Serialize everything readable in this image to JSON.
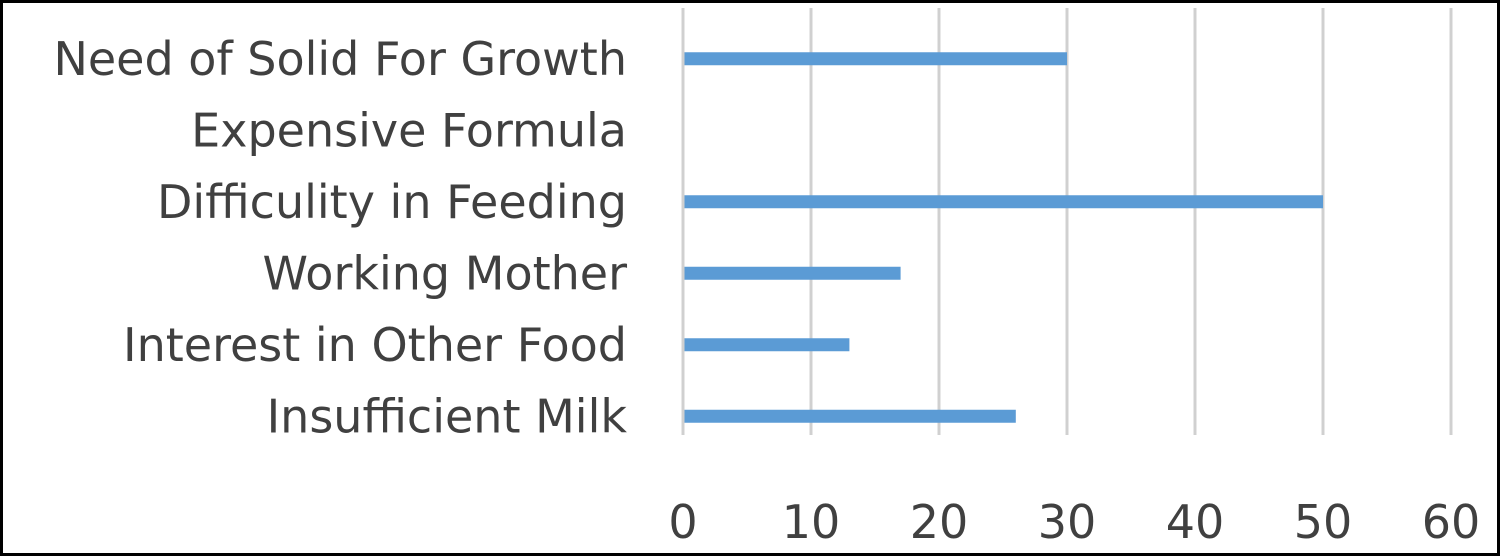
{
  "chart_data": {
    "type": "bar",
    "orientation": "horizontal",
    "title": "",
    "xlabel": "",
    "ylabel": "",
    "categories": [
      "Need of Solid For Growth",
      "Expensive Formula",
      "Difficulity in Feeding",
      "Working Mother",
      "Interest in Other Food",
      "Insufficient Milk"
    ],
    "values": [
      30,
      0,
      50,
      17,
      13,
      26
    ],
    "xlim": [
      0,
      60
    ],
    "x_ticks": [
      0,
      10,
      20,
      30,
      40,
      50,
      60
    ],
    "grid": "vertical",
    "legend": "none",
    "colors": {
      "bar": "#5B9BD5",
      "grid": "#D0D0D0",
      "text": "#404040",
      "border": "#000000"
    }
  }
}
